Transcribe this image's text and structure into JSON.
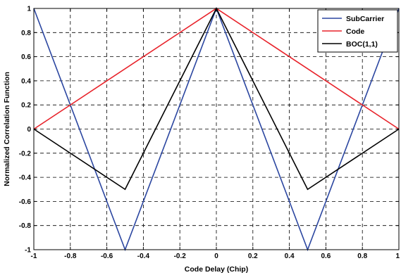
{
  "chart_data": {
    "type": "line",
    "title": "",
    "xlabel": "Code Delay (Chip)",
    "ylabel": "Normalized Correlation Function",
    "xlim": [
      -1,
      1
    ],
    "ylim": [
      -1,
      1
    ],
    "grid": true,
    "legend_position": "top-right",
    "x_ticks": [
      "-1",
      "-0.8",
      "-0.6",
      "-0.4",
      "-0.2",
      "0",
      "0.2",
      "0.4",
      "0.6",
      "0.8",
      "1"
    ],
    "y_ticks": [
      "-1",
      "-0.8",
      "-0.6",
      "-0.4",
      "-0.2",
      "0",
      "0.2",
      "0.4",
      "0.6",
      "0.8",
      "1"
    ],
    "series": [
      {
        "name": "SubCarrier",
        "color": "#2b46a0",
        "x": [
          -1,
          -0.5,
          0,
          0.5,
          1
        ],
        "y": [
          1,
          -1,
          1,
          -1,
          1
        ]
      },
      {
        "name": "Code",
        "color": "#e8222a",
        "x": [
          -1,
          0,
          1
        ],
        "y": [
          0,
          1,
          0
        ]
      },
      {
        "name": "BOC(1,1)",
        "color": "#000000",
        "x": [
          -1,
          -0.5,
          0,
          0.5,
          1
        ],
        "y": [
          0,
          -0.5,
          1,
          -0.5,
          0
        ]
      }
    ]
  }
}
